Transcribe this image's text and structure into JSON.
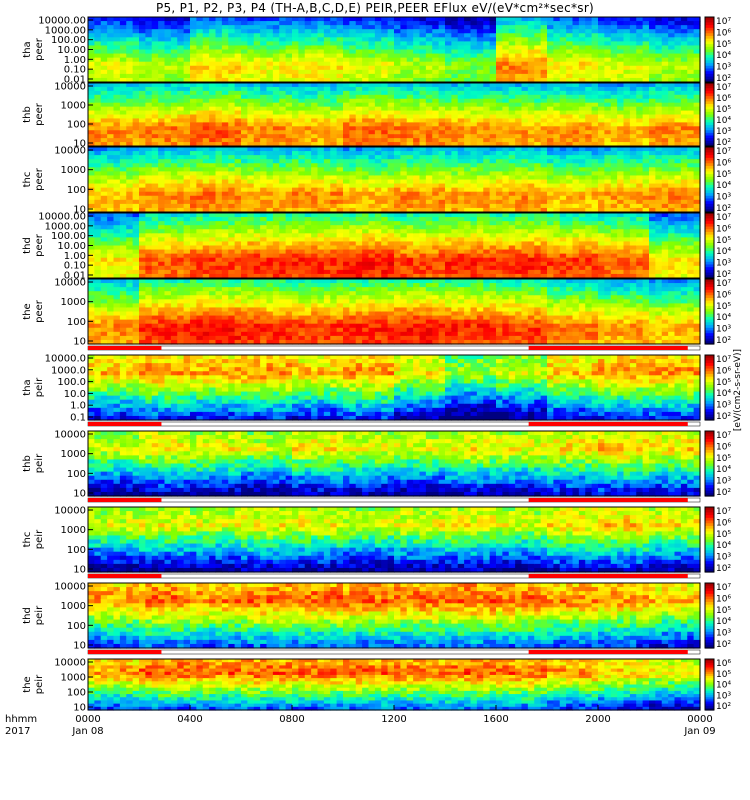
{
  "title": "P5, P1, P2, P3, P4 (TH-A,B,C,D,E) PEIR,PEER EFlux eV/(eV*cm²*sec*sr)",
  "colorbar_unit": "[eV/(cm2-s-sr-eV)]",
  "colorbar_ticks": [
    "10⁸",
    "10⁷",
    "10⁶",
    "10⁵",
    "10⁴",
    "10³",
    "10²"
  ],
  "colorscale": [
    "#000080",
    "#0000ff",
    "#00a0ff",
    "#00ffc0",
    "#80ff00",
    "#ffff00",
    "#ff8000",
    "#ff0000",
    "#a00000"
  ],
  "chart_data": {
    "type": "heatmap",
    "description_free": true,
    "x_ticks": [
      "0000",
      "0400",
      "0800",
      "1200",
      "1600",
      "2000",
      "0000"
    ],
    "x_subticks": [
      "Jan 08",
      "",
      "",
      "",
      "",
      "",
      "Jan 09"
    ],
    "x_axis_label": "hhmm",
    "x_axis_year": "2017",
    "panels": [
      {
        "probe": "tha",
        "species": "peer",
        "yticks": [
          "10000.00",
          "1000.00",
          "100.00",
          "10.00",
          "1.00",
          "0.10",
          "0.01"
        ],
        "profile": [
          0.55,
          0.5,
          0.62,
          0.58,
          0.6,
          0.55,
          0.5,
          0.45,
          0.7,
          0.6,
          0.55,
          0.5
        ]
      },
      {
        "probe": "thb",
        "species": "peer",
        "yticks": [
          "10000",
          "1000",
          "100",
          "10"
        ],
        "profile": [
          0.7,
          0.72,
          0.75,
          0.7,
          0.68,
          0.74,
          0.72,
          0.7,
          0.68,
          0.7,
          0.66,
          0.7
        ]
      },
      {
        "probe": "thc",
        "species": "peer",
        "yticks": [
          "10000",
          "1000",
          "100",
          "10"
        ],
        "profile": [
          0.65,
          0.7,
          0.72,
          0.68,
          0.7,
          0.66,
          0.7,
          0.68,
          0.7,
          0.65,
          0.68,
          0.7
        ]
      },
      {
        "probe": "thd",
        "species": "peer",
        "yticks": [
          "10000.00",
          "1000.00",
          "100.00",
          "10.00",
          "1.00",
          "0.10",
          "0.01"
        ],
        "profile": [
          0.6,
          0.75,
          0.78,
          0.8,
          0.8,
          0.82,
          0.78,
          0.8,
          0.8,
          0.78,
          0.75,
          0.6
        ]
      },
      {
        "probe": "the",
        "species": "peer",
        "yticks": [
          "10000",
          "1000",
          "100",
          "10"
        ],
        "profile": [
          0.7,
          0.8,
          0.82,
          0.8,
          0.78,
          0.8,
          0.82,
          0.8,
          0.78,
          0.72,
          0.68,
          0.65
        ]
      },
      {
        "probe": "tha",
        "species": "peir",
        "yticks": [
          "10000.0",
          "1000.0",
          "100.0",
          "10.0",
          "1.0",
          "0.1"
        ],
        "profile": [
          0.45,
          0.5,
          0.48,
          0.5,
          0.45,
          0.5,
          0.4,
          0.3,
          0.35,
          0.45,
          0.5,
          0.5
        ]
      },
      {
        "probe": "thb",
        "species": "peir",
        "yticks": [
          "10000",
          "1000",
          "100",
          "10"
        ],
        "profile": [
          0.35,
          0.4,
          0.38,
          0.35,
          0.4,
          0.38,
          0.36,
          0.4,
          0.38,
          0.42,
          0.45,
          0.42
        ]
      },
      {
        "probe": "thc",
        "species": "peir",
        "yticks": [
          "10000",
          "1000",
          "100",
          "10"
        ],
        "profile": [
          0.35,
          0.38,
          0.36,
          0.4,
          0.38,
          0.35,
          0.38,
          0.4,
          0.36,
          0.42,
          0.44,
          0.4
        ]
      },
      {
        "probe": "thd",
        "species": "peir",
        "yticks": [
          "10000",
          "1000",
          "100",
          "10"
        ],
        "profile": [
          0.5,
          0.55,
          0.52,
          0.55,
          0.56,
          0.54,
          0.55,
          0.56,
          0.55,
          0.52,
          0.5,
          0.45
        ]
      },
      {
        "probe": "the",
        "species": "peir",
        "yticks": [
          "10000",
          "1000",
          "100",
          "10"
        ],
        "profile": [
          0.5,
          0.56,
          0.55,
          0.56,
          0.55,
          0.56,
          0.55,
          0.56,
          0.55,
          0.5,
          0.45,
          0.4
        ]
      }
    ]
  }
}
